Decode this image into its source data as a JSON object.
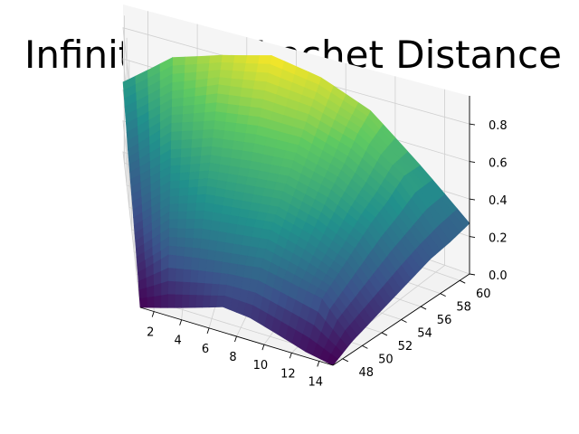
{
  "chart_data": {
    "type": "surface",
    "title": "Infinity LTE Frechet Distance",
    "colormap": "viridis",
    "x_ticks": [
      "2",
      "4",
      "6",
      "8",
      "10",
      "12",
      "14"
    ],
    "y_ticks": [
      "48",
      "50",
      "52",
      "54",
      "56",
      "58",
      "60"
    ],
    "z_ticks": [
      "0.0",
      "0.2",
      "0.4",
      "0.6",
      "0.8"
    ],
    "xlim": [
      1,
      15
    ],
    "ylim": [
      47,
      61
    ],
    "zlim": [
      0,
      0.95
    ],
    "x_values": [
      1,
      3,
      5,
      7,
      9,
      11,
      13,
      15
    ],
    "y_values": [
      47,
      49,
      51,
      53,
      55,
      57,
      59,
      61
    ],
    "z_grid": [
      [
        0.0,
        0.08,
        0.14,
        0.2,
        0.25,
        0.3,
        0.38,
        0.45
      ],
      [
        0.05,
        0.25,
        0.34,
        0.4,
        0.46,
        0.55,
        0.62,
        0.7
      ],
      [
        0.1,
        0.28,
        0.4,
        0.48,
        0.55,
        0.64,
        0.74,
        0.8
      ],
      [
        0.15,
        0.3,
        0.42,
        0.5,
        0.58,
        0.68,
        0.78,
        0.88
      ],
      [
        0.13,
        0.32,
        0.44,
        0.52,
        0.6,
        0.68,
        0.76,
        0.83
      ],
      [
        0.08,
        0.28,
        0.38,
        0.46,
        0.54,
        0.6,
        0.68,
        0.72
      ],
      [
        0.03,
        0.24,
        0.3,
        0.36,
        0.42,
        0.46,
        0.52,
        0.5
      ],
      [
        0.0,
        0.06,
        0.1,
        0.14,
        0.18,
        0.22,
        0.24,
        0.27
      ]
    ],
    "grid": true
  }
}
